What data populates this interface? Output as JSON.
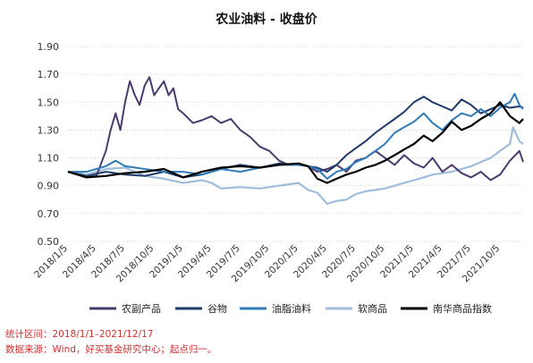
{
  "chart_data": {
    "type": "line",
    "title": "农业油料 - 收盘价",
    "ylim": [
      0.5,
      1.9
    ],
    "yticks": [
      "1.90",
      "1.70",
      "1.50",
      "1.30",
      "1.10",
      "0.90",
      "0.70",
      "0.50"
    ],
    "xticks": [
      "2018/1/5",
      "2018/4/5",
      "2018/7/5",
      "2018/10/5",
      "2019/1/5",
      "2019/4/5",
      "2019/7/5",
      "2019/10/5",
      "2020/1/5",
      "2020/4/5",
      "2020/7/5",
      "2020/10/5",
      "2021/1/5",
      "2021/4/5",
      "2021/7/5",
      "2021/10/5"
    ],
    "grid": "horizontal-dotted",
    "legend_position": "bottom",
    "colors": {
      "农副产品": "#4b3a6e",
      "谷物": "#1f3b6a",
      "油脂油料": "#2f7ab8",
      "软商品": "#9fbcdb",
      "南华商品指数": "#000000"
    },
    "series": [
      {
        "name": "农副产品",
        "x": [
          "2018/1/5",
          "2018/2/5",
          "2018/3/5",
          "2018/4/5",
          "2018/5/5",
          "2018/5/20",
          "2018/6/5",
          "2018/6/20",
          "2018/7/5",
          "2018/7/20",
          "2018/8/5",
          "2018/8/20",
          "2018/9/5",
          "2018/9/20",
          "2018/10/5",
          "2018/10/20",
          "2018/11/5",
          "2018/11/20",
          "2018/12/5",
          "2018/12/20",
          "2019/1/5",
          "2019/2/5",
          "2019/3/5",
          "2019/4/5",
          "2019/5/5",
          "2019/6/5",
          "2019/7/5",
          "2019/8/5",
          "2019/9/5",
          "2019/10/5",
          "2019/11/5",
          "2019/12/5",
          "2020/1/5",
          "2020/2/5",
          "2020/3/5",
          "2020/4/5",
          "2020/5/5",
          "2020/6/5",
          "2020/7/5",
          "2020/8/5",
          "2020/9/5",
          "2020/10/5",
          "2020/11/5",
          "2020/12/5",
          "2021/1/5",
          "2021/2/5",
          "2021/3/5",
          "2021/4/5",
          "2021/5/5",
          "2021/6/5",
          "2021/7/5",
          "2021/8/5",
          "2021/9/5",
          "2021/10/5",
          "2021/11/5",
          "2021/12/5",
          "2021/12/17"
        ],
        "values": [
          1.0,
          0.98,
          0.96,
          0.97,
          1.15,
          1.3,
          1.42,
          1.3,
          1.5,
          1.65,
          1.55,
          1.48,
          1.62,
          1.68,
          1.55,
          1.6,
          1.65,
          1.55,
          1.6,
          1.45,
          1.42,
          1.35,
          1.37,
          1.4,
          1.35,
          1.38,
          1.3,
          1.25,
          1.18,
          1.15,
          1.08,
          1.05,
          1.06,
          1.04,
          1.0,
          1.02,
          1.05,
          1.0,
          1.08,
          1.1,
          1.15,
          1.1,
          1.05,
          1.12,
          1.06,
          1.03,
          1.1,
          1.0,
          1.05,
          0.99,
          0.96,
          1.0,
          0.94,
          0.98,
          1.08,
          1.15,
          1.07
        ]
      },
      {
        "name": "谷物",
        "x": [
          "2018/1/5",
          "2018/3/5",
          "2018/5/5",
          "2018/7/5",
          "2018/9/5",
          "2018/11/5",
          "2019/1/5",
          "2019/3/5",
          "2019/5/5",
          "2019/7/5",
          "2019/9/5",
          "2019/11/5",
          "2020/1/5",
          "2020/3/5",
          "2020/4/5",
          "2020/5/5",
          "2020/6/5",
          "2020/7/5",
          "2020/8/5",
          "2020/9/5",
          "2020/10/5",
          "2020/11/5",
          "2020/12/5",
          "2021/1/5",
          "2021/2/5",
          "2021/3/5",
          "2021/4/5",
          "2021/5/5",
          "2021/6/5",
          "2021/7/5",
          "2021/8/5",
          "2021/9/5",
          "2021/10/5",
          "2021/11/5",
          "2021/12/5",
          "2021/12/17"
        ],
        "values": [
          1.0,
          0.97,
          1.0,
          0.98,
          0.97,
          1.0,
          0.96,
          0.98,
          1.02,
          1.05,
          1.03,
          1.06,
          1.05,
          1.03,
          1.0,
          1.05,
          1.12,
          1.17,
          1.22,
          1.28,
          1.33,
          1.38,
          1.43,
          1.5,
          1.54,
          1.5,
          1.47,
          1.44,
          1.52,
          1.48,
          1.42,
          1.45,
          1.48,
          1.46,
          1.47,
          1.46
        ]
      },
      {
        "name": "油脂油料",
        "x": [
          "2018/1/5",
          "2018/3/5",
          "2018/5/5",
          "2018/6/5",
          "2018/7/5",
          "2018/9/5",
          "2018/11/5",
          "2019/1/5",
          "2019/3/5",
          "2019/5/5",
          "2019/7/5",
          "2019/9/5",
          "2019/11/5",
          "2020/1/5",
          "2020/2/5",
          "2020/3/5",
          "2020/4/5",
          "2020/5/5",
          "2020/6/5",
          "2020/7/5",
          "2020/8/5",
          "2020/9/5",
          "2020/10/5",
          "2020/11/5",
          "2020/12/5",
          "2021/1/5",
          "2021/2/5",
          "2021/3/5",
          "2021/4/5",
          "2021/5/5",
          "2021/6/5",
          "2021/7/5",
          "2021/8/5",
          "2021/9/5",
          "2021/10/5",
          "2021/11/5",
          "2021/11/20",
          "2021/12/5",
          "2021/12/17"
        ],
        "values": [
          1.0,
          1.0,
          1.04,
          1.08,
          1.04,
          1.02,
          1.0,
          1.0,
          0.98,
          1.02,
          1.0,
          1.03,
          1.05,
          1.05,
          1.04,
          1.02,
          0.95,
          1.0,
          1.02,
          1.07,
          1.1,
          1.15,
          1.2,
          1.28,
          1.32,
          1.36,
          1.42,
          1.35,
          1.3,
          1.37,
          1.42,
          1.4,
          1.45,
          1.4,
          1.46,
          1.5,
          1.56,
          1.48,
          1.45
        ]
      },
      {
        "name": "软商品",
        "x": [
          "2018/1/5",
          "2018/3/5",
          "2018/5/5",
          "2018/7/5",
          "2018/9/5",
          "2018/11/5",
          "2019/1/5",
          "2019/3/5",
          "2019/4/5",
          "2019/5/5",
          "2019/7/5",
          "2019/9/5",
          "2019/11/5",
          "2020/1/5",
          "2020/2/5",
          "2020/3/5",
          "2020/4/5",
          "2020/5/5",
          "2020/6/5",
          "2020/7/5",
          "2020/8/5",
          "2020/9/5",
          "2020/10/5",
          "2020/11/5",
          "2020/12/5",
          "2021/1/5",
          "2021/2/5",
          "2021/3/5",
          "2021/4/5",
          "2021/5/5",
          "2021/6/5",
          "2021/7/5",
          "2021/8/5",
          "2021/9/5",
          "2021/10/5",
          "2021/11/5",
          "2021/11/15",
          "2021/12/5",
          "2021/12/17"
        ],
        "values": [
          1.0,
          0.98,
          1.02,
          1.03,
          0.97,
          0.95,
          0.92,
          0.94,
          0.92,
          0.88,
          0.89,
          0.88,
          0.9,
          0.92,
          0.87,
          0.85,
          0.77,
          0.79,
          0.8,
          0.84,
          0.86,
          0.87,
          0.88,
          0.9,
          0.92,
          0.94,
          0.96,
          0.98,
          0.99,
          1.0,
          1.02,
          1.04,
          1.07,
          1.1,
          1.15,
          1.2,
          1.32,
          1.22,
          1.2
        ]
      },
      {
        "name": "南华商品指数",
        "x": [
          "2018/1/5",
          "2018/3/5",
          "2018/5/5",
          "2018/7/5",
          "2018/9/5",
          "2018/11/5",
          "2019/1/5",
          "2019/3/5",
          "2019/5/5",
          "2019/7/5",
          "2019/9/5",
          "2019/11/5",
          "2020/1/5",
          "2020/2/5",
          "2020/3/5",
          "2020/4/5",
          "2020/5/5",
          "2020/6/5",
          "2020/7/5",
          "2020/8/5",
          "2020/9/5",
          "2020/10/5",
          "2020/11/5",
          "2020/12/5",
          "2021/1/5",
          "2021/2/5",
          "2021/3/5",
          "2021/4/5",
          "2021/5/5",
          "2021/6/5",
          "2021/7/5",
          "2021/8/5",
          "2021/9/5",
          "2021/10/5",
          "2021/11/5",
          "2021/12/5",
          "2021/12/17"
        ],
        "values": [
          1.0,
          0.96,
          0.97,
          0.99,
          1.0,
          1.02,
          0.96,
          1.0,
          1.03,
          1.04,
          1.03,
          1.05,
          1.06,
          1.04,
          0.95,
          0.92,
          0.95,
          0.98,
          1.0,
          1.03,
          1.05,
          1.08,
          1.12,
          1.16,
          1.2,
          1.26,
          1.22,
          1.28,
          1.36,
          1.3,
          1.33,
          1.38,
          1.42,
          1.5,
          1.4,
          1.35,
          1.38
        ]
      }
    ]
  },
  "notes": {
    "line1": "统计区间：2018/1/1–2021/12/17",
    "line2": "数据来源：Wind，好买基金研究中心；起点归一。"
  }
}
